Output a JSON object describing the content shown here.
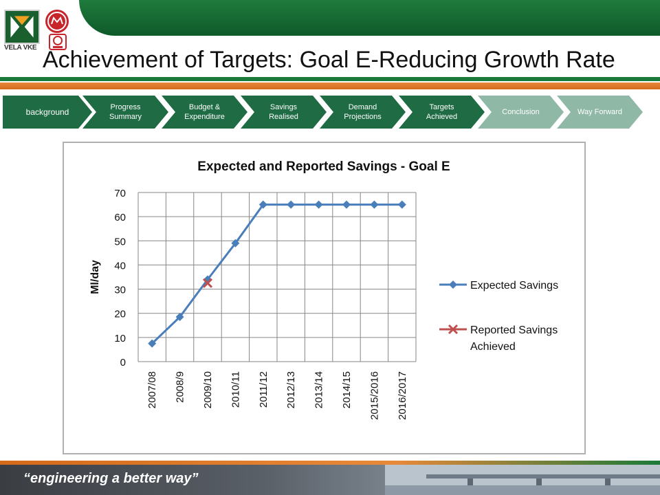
{
  "header": {
    "title": "Achievement of Targets: Goal E-Reducing Growth Rate",
    "logo_text": "VELA VKE"
  },
  "nav": {
    "steps": [
      {
        "label": "background",
        "state": "active"
      },
      {
        "label": "Progress Summary",
        "state": "active"
      },
      {
        "label": "Budget & Expenditure",
        "state": "active"
      },
      {
        "label": "Savings Realised",
        "state": "active"
      },
      {
        "label": "Demand Projections",
        "state": "active"
      },
      {
        "label": "Targets Achieved",
        "state": "active"
      },
      {
        "label": "Conclusion",
        "state": "inactive"
      },
      {
        "label": "Way Forward",
        "state": "inactive"
      }
    ]
  },
  "footer": {
    "tagline": "“engineering a better way”"
  },
  "colors": {
    "brand_green": "#1f6b44",
    "nav_inactive": "#8fb8a6",
    "accent_orange": "#e8893a",
    "expected_series": "#4a7ebb",
    "reported_series": "#c0504d"
  },
  "chart_data": {
    "type": "line",
    "title": "Expected and Reported Savings - Goal E",
    "xlabel": "",
    "ylabel": "Ml/day",
    "ylim": [
      0,
      70
    ],
    "yticks": [
      0,
      10,
      20,
      30,
      40,
      50,
      60,
      70
    ],
    "grid": true,
    "legend": "right",
    "categories": [
      "2007/08",
      "2008/9",
      "2009/10",
      "2010/11",
      "2011/12",
      "2012/13",
      "2013/14",
      "2014/15",
      "2015/2016",
      "2016/2017"
    ],
    "series": [
      {
        "name": "Expected Savings",
        "marker": "diamond",
        "color": "#4a7ebb",
        "values": [
          7.5,
          18.5,
          34,
          49,
          65,
          65,
          65,
          65,
          65,
          65
        ]
      },
      {
        "name": "Reported Savings Achieved",
        "marker": "x",
        "color": "#c0504d",
        "values": [
          null,
          null,
          32.5,
          null,
          null,
          null,
          null,
          null,
          null,
          null
        ]
      }
    ]
  }
}
